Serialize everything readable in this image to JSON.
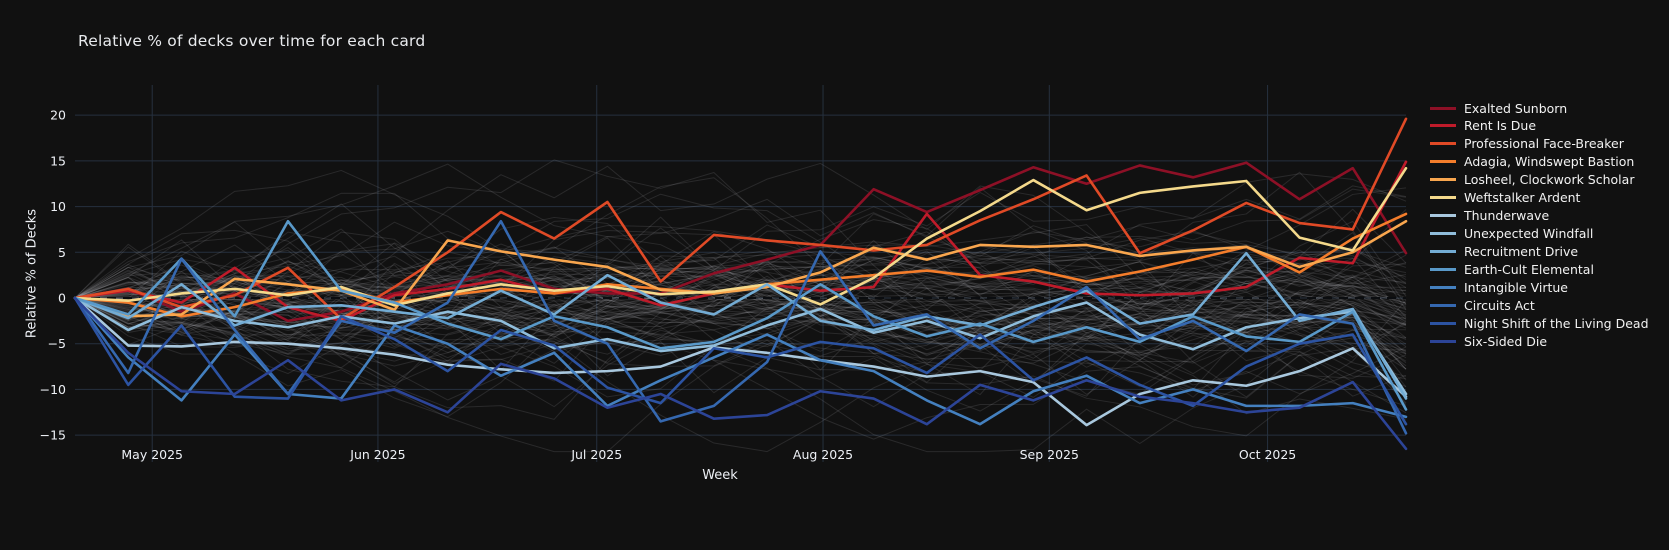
{
  "title": "Relative  % of decks over time for each card",
  "legend": {
    "position": "right"
  },
  "chart_data": {
    "type": "line",
    "title": "Relative  % of decks over time for each card",
    "xlabel": "Week",
    "ylabel": "Relative % of Decks",
    "x_tick_labels": [
      "May 2025",
      "Jun 2025",
      "Jul 2025",
      "Aug 2025",
      "Sep 2025",
      "Oct 2025"
    ],
    "x_tick_week_positions": [
      1.45,
      5.69,
      9.8,
      14.05,
      18.3,
      22.4
    ],
    "y_tick_values": [
      20,
      15,
      10,
      5,
      0,
      -5,
      -10,
      -15
    ],
    "y_tick_labels": [
      "20",
      "15",
      "10",
      "5",
      "0",
      "−5",
      "−10",
      "−15"
    ],
    "ylim": [
      -18.3,
      22.3
    ],
    "weeks": 26,
    "grid": true,
    "zero_line_style": "black-dashed",
    "background_color": "#111111",
    "grid_color": "#26313f",
    "series": [
      {
        "name": "Exalted Sunborn",
        "color": "#8d1026",
        "values": [
          0,
          1,
          -1.5,
          0.5,
          -2.5,
          -1.5,
          0.5,
          1.5,
          3,
          1,
          0.5,
          0.5,
          2.7,
          4.2,
          5.8,
          11.9,
          9.4,
          11.8,
          14.3,
          12.5,
          14.5,
          13.2,
          14.8,
          10.8,
          14.2,
          4.9
        ]
      },
      {
        "name": "Rent Is Due",
        "color": "#bf1b2a",
        "values": [
          0,
          0.8,
          -0.5,
          3.3,
          -1,
          -2.5,
          0.3,
          1,
          2,
          0.5,
          1,
          -0.8,
          0.5,
          1.5,
          0.8,
          1.2,
          9.2,
          2.5,
          1.8,
          0.5,
          0.3,
          0.5,
          1.2,
          4.4,
          3.8,
          14.9
        ]
      },
      {
        "name": "Professional Face-Breaker",
        "color": "#e04a26",
        "values": [
          0,
          1,
          -1,
          0.3,
          3.3,
          -2.3,
          1.2,
          5,
          9.4,
          6.5,
          10.5,
          1.8,
          6.9,
          6.3,
          5.8,
          5.2,
          5.8,
          8.5,
          10.8,
          13.4,
          4.9,
          7.4,
          10.4,
          8.2,
          7.5,
          19.6
        ]
      },
      {
        "name": "Adagia, Windswept Bastion",
        "color": "#f47d2b",
        "values": [
          0,
          -0.5,
          -2,
          -1,
          0.5,
          1,
          -0.5,
          0.3,
          1,
          0.5,
          1.5,
          1,
          0.5,
          1.5,
          2,
          2.5,
          3,
          2.3,
          3.1,
          1.8,
          2.9,
          4.2,
          5.6,
          2.8,
          6.5,
          9.2
        ]
      },
      {
        "name": "Losheel, Clockwork Scholar",
        "color": "#f9a64e",
        "values": [
          0,
          -2,
          -1.8,
          2.1,
          1.5,
          0.8,
          -1.3,
          6.3,
          5.1,
          4.2,
          3.4,
          0.9,
          0.5,
          1.2,
          2.8,
          5.5,
          4.2,
          5.8,
          5.6,
          5.8,
          4.6,
          5.2,
          5.6,
          3.4,
          5,
          8.4
        ]
      },
      {
        "name": "Weftstalker Ardent",
        "color": "#f4d98b",
        "values": [
          0,
          -0.3,
          0.5,
          1,
          0.3,
          1.2,
          -0.8,
          0.5,
          1.5,
          0.8,
          1.3,
          0.4,
          0.7,
          1.5,
          -0.7,
          2.2,
          6.5,
          9.5,
          12.9,
          9.6,
          11.5,
          12.2,
          12.8,
          6.6,
          5.2,
          14.2
        ]
      },
      {
        "name": "Thunderwave",
        "color": "#a9c8de",
        "values": [
          0,
          -5.2,
          -5.3,
          -4.8,
          -5,
          -5.5,
          -6.2,
          -7.3,
          -7.8,
          -8.2,
          -8,
          -7.5,
          -5.4,
          -6,
          -6.8,
          -7.5,
          -8.6,
          -8,
          -9.2,
          -13.9,
          -10.5,
          -9,
          -9.6,
          -8,
          -5.5,
          -10.8
        ]
      },
      {
        "name": "Unexpected Windfall",
        "color": "#90bddb",
        "values": [
          0,
          -3.5,
          -1,
          -2.5,
          -3.2,
          -2,
          -2.8,
          -1.5,
          -2.5,
          -5.5,
          -4.5,
          -5.8,
          -5.2,
          -3,
          -1.2,
          -3.8,
          -2.5,
          -4.4,
          -2,
          -0.5,
          -4,
          -5.6,
          -3.2,
          -2.2,
          -1.5,
          -10.5
        ]
      },
      {
        "name": "Recruitment Drive",
        "color": "#73acd4",
        "values": [
          0,
          -2.2,
          1.5,
          -3,
          -1,
          -0.8,
          -1.5,
          -2.2,
          0.8,
          -1.8,
          2.5,
          -0.5,
          -1.8,
          1.5,
          -2.5,
          -3.5,
          -2,
          -3,
          -1,
          0.8,
          -2.8,
          -1.8,
          4.9,
          -2.5,
          -1.2,
          -11
        ]
      },
      {
        "name": "Earth-Cult Elemental",
        "color": "#5999c9",
        "values": [
          0,
          -1.8,
          4.3,
          -2,
          8.4,
          0.8,
          -0.5,
          -2.8,
          -4.5,
          -2,
          -3.2,
          -5.5,
          -4.8,
          -2.2,
          1.5,
          -2,
          -4.2,
          -2.8,
          -4.8,
          -3.2,
          -4.8,
          -2,
          -4.2,
          -4.8,
          -1.5,
          -12.2
        ]
      },
      {
        "name": "Intangible Virtue",
        "color": "#4480bf",
        "values": [
          0,
          -6.5,
          -11.2,
          -4,
          -10.5,
          -11,
          -3,
          -5,
          -8.5,
          -6,
          -11.8,
          -9,
          -6.5,
          -4,
          -6.8,
          -8,
          -11.2,
          -13.8,
          -10.2,
          -8.5,
          -11.5,
          -10,
          -11.8,
          -11.8,
          -11.5,
          -13
        ]
      },
      {
        "name": "Circuits Act",
        "color": "#3568b0",
        "values": [
          0,
          -8.2,
          4.3,
          -3.5,
          -10.5,
          -2.5,
          -3.8,
          -0.5,
          8.4,
          -2.5,
          -5,
          -13.5,
          -11.8,
          -7,
          5.1,
          -3,
          -1.8,
          -5.5,
          -2.5,
          1.2,
          -4.5,
          -2.5,
          -5.8,
          -1.8,
          -2.8,
          -14.8
        ]
      },
      {
        "name": "Night Shift of the Living Dead",
        "color": "#2c53a2",
        "values": [
          0,
          -9.5,
          -3,
          -10.8,
          -11,
          -2,
          -4.5,
          -8,
          -3.5,
          -5.2,
          -9.8,
          -11.5,
          -5.5,
          -6.5,
          -4.8,
          -5.5,
          -8.2,
          -4,
          -9,
          -6.5,
          -9.5,
          -11.8,
          -7.5,
          -5,
          -4,
          -13.8
        ]
      },
      {
        "name": "Six-Sided Die",
        "color": "#2c4497",
        "values": [
          0,
          -6,
          -10.2,
          -10.5,
          -6.8,
          -11.2,
          -10,
          -12.5,
          -7.2,
          -8.8,
          -12,
          -10.5,
          -13.2,
          -12.8,
          -10.2,
          -11,
          -13.8,
          -9.5,
          -11.2,
          -9,
          -10.8,
          -11.5,
          -12.5,
          -12,
          -9.2,
          -16.5
        ]
      }
    ],
    "background_series": {
      "count": 90,
      "color": "#cfd4da",
      "opacity": 0.13,
      "description": "unhighlighted cards, faint gray random-walk lines starting at 0, mostly between -9 and +6, extremes -16.5 to +15.5"
    }
  }
}
